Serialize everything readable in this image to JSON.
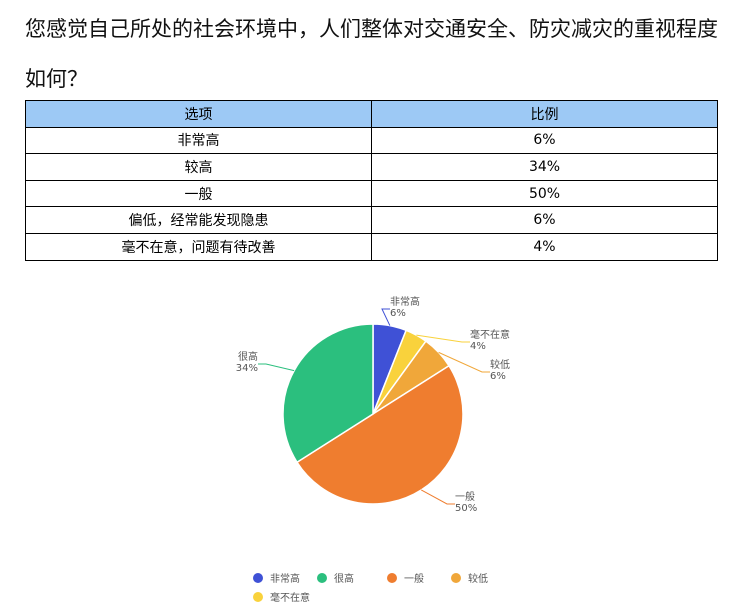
{
  "question": "您感觉自己所处的社会环境中，人们整体对交通安全、防灾减灾的重视程度如何？",
  "table": {
    "headers": [
      "选项",
      "比例"
    ],
    "rows": [
      [
        "非常高",
        "6%"
      ],
      [
        "较高",
        "34%"
      ],
      [
        "一般",
        "50%"
      ],
      [
        "偏低，经常能发现隐患",
        "6%"
      ],
      [
        "毫不在意，问题有待改善",
        "4%"
      ]
    ]
  },
  "chart_data": {
    "type": "pie",
    "legend_placement": "bottom",
    "slices": [
      {
        "name": "非常高",
        "value": 6,
        "label": "6%",
        "color": "#3f51d6"
      },
      {
        "name": "毫不在意",
        "value": 4,
        "label": "4%",
        "color": "#f9d23c"
      },
      {
        "name": "较低",
        "value": 6,
        "label": "6%",
        "color": "#f0a73a"
      },
      {
        "name": "一般",
        "value": 50,
        "label": "50%",
        "color": "#ef7d2f"
      },
      {
        "name": "很高",
        "value": 34,
        "label": "34%",
        "color": "#2bbf7e"
      }
    ],
    "legend": [
      {
        "name": "非常高",
        "color": "#3f51d6"
      },
      {
        "name": "很高",
        "color": "#2bbf7e"
      },
      {
        "name": "一般",
        "color": "#ef7d2f"
      },
      {
        "name": "较低",
        "color": "#f0a73a"
      },
      {
        "name": "毫不在意",
        "color": "#f9d23c"
      }
    ]
  }
}
